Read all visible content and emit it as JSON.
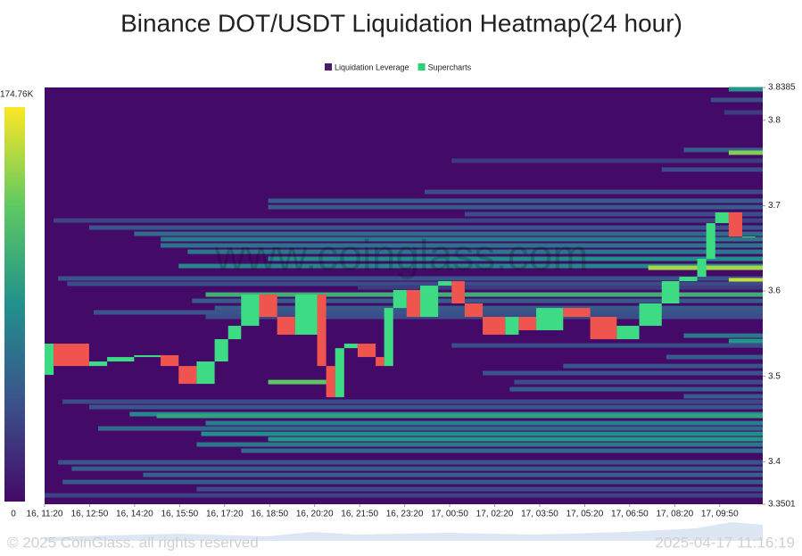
{
  "chart_data": {
    "type": "heatmap",
    "title": "Binance DOT/USDT Liquidation Heatmap(24 hour)",
    "legend": [
      {
        "name": "Liquidation Leverage",
        "color": "#4b1c6e"
      },
      {
        "name": "Supercharts",
        "color": "#2fd07a"
      }
    ],
    "watermark": "www.coinglass.com",
    "footer_left": "© 2025 CoinGlass. all rights reserved",
    "footer_right": "2025-04-17 11:16:19",
    "colorscale": [
      "#440a68",
      "#3b528b",
      "#21918c",
      "#5ec962",
      "#fde725"
    ],
    "colorbar_ticks": [
      0,
      {
        "value": 174760,
        "label": "174.76K"
      }
    ],
    "xlim": [
      680,
      2116
    ],
    "xticks": [
      {
        "value": 680,
        "label": "16, 11:20"
      },
      {
        "value": 770,
        "label": "16, 12:50"
      },
      {
        "value": 860,
        "label": "16, 14:20"
      },
      {
        "value": 950,
        "label": "16, 15:50"
      },
      {
        "value": 1040,
        "label": "16, 17:20"
      },
      {
        "value": 1130,
        "label": "16, 18:50"
      },
      {
        "value": 1220,
        "label": "16, 20:20"
      },
      {
        "value": 1310,
        "label": "16, 21:50"
      },
      {
        "value": 1400,
        "label": "16, 23:20"
      },
      {
        "value": 1490,
        "label": "17, 00:50"
      },
      {
        "value": 1580,
        "label": "17, 02:20"
      },
      {
        "value": 1670,
        "label": "17, 03:50"
      },
      {
        "value": 1760,
        "label": "17, 05:20"
      },
      {
        "value": 1850,
        "label": "17, 06:50"
      },
      {
        "value": 1940,
        "label": "17, 08:20"
      },
      {
        "value": 2030,
        "label": "17, 09:50"
      }
    ],
    "ylim": [
      3.3501,
      3.8385
    ],
    "yticks": [
      3.3501,
      3.4,
      3.5,
      3.6,
      3.7,
      3.8,
      3.8385
    ],
    "bands": [
      {
        "price": 3.8364,
        "start": 2048,
        "value": 90000
      },
      {
        "price": 3.8239,
        "start": 2012,
        "value": 40000
      },
      {
        "price": 3.8092,
        "start": 2039,
        "value": 30000
      },
      {
        "price": 3.7653,
        "start": 1958,
        "value": 50000
      },
      {
        "price": 3.7621,
        "start": 2048,
        "value": 140000
      },
      {
        "price": 3.7527,
        "start": 1494,
        "value": 30000
      },
      {
        "price": 3.7423,
        "start": 1914,
        "value": 40000
      },
      {
        "price": 3.7161,
        "start": 1440,
        "value": 40000
      },
      {
        "price": 3.7057,
        "start": 1127,
        "value": 50000
      },
      {
        "price": 3.6983,
        "start": 1127,
        "value": 50000
      },
      {
        "price": 3.69,
        "start": 1520,
        "value": 40000
      },
      {
        "price": 3.6826,
        "start": 698,
        "value": 35000
      },
      {
        "price": 3.6743,
        "start": 769,
        "value": 45000
      },
      {
        "price": 3.667,
        "start": 859,
        "value": 60000
      },
      {
        "price": 3.6607,
        "start": 912,
        "value": 70000
      },
      {
        "price": 3.6534,
        "start": 912,
        "value": 65000
      },
      {
        "price": 3.646,
        "start": 966,
        "value": 70000
      },
      {
        "price": 3.6377,
        "start": 1127,
        "value": 85000
      },
      {
        "price": 3.6293,
        "start": 948,
        "value": 80000
      },
      {
        "price": 3.6272,
        "start": 1887,
        "value": 150000
      },
      {
        "price": 3.6147,
        "start": 707,
        "value": 45000
      },
      {
        "price": 3.6126,
        "start": 2048,
        "value": 160000
      },
      {
        "price": 3.6084,
        "start": 725,
        "value": 40000
      },
      {
        "price": 3.6042,
        "start": 1306,
        "value": 30000
      },
      {
        "price": 3.5958,
        "start": 1002,
        "value": 110000
      },
      {
        "price": 3.5885,
        "start": 975,
        "value": 50000
      },
      {
        "price": 3.5801,
        "start": 1020,
        "value": 50000
      },
      {
        "price": 3.5749,
        "start": 778,
        "value": 45000
      },
      {
        "price": 3.5697,
        "start": 1002,
        "value": 40000
      },
      {
        "price": 3.5477,
        "start": 1958,
        "value": 70000
      },
      {
        "price": 3.5414,
        "start": 2048,
        "value": 90000
      },
      {
        "price": 3.5362,
        "start": 1494,
        "value": 40000
      },
      {
        "price": 3.5226,
        "start": 1923,
        "value": 50000
      },
      {
        "price": 3.5121,
        "start": 1717,
        "value": 45000
      },
      {
        "price": 3.5038,
        "start": 1556,
        "value": 45000
      },
      {
        "price": 3.4933,
        "start": 1127,
        "end": 1252,
        "value": 130000
      },
      {
        "price": 3.4933,
        "start": 1619,
        "value": 40000
      },
      {
        "price": 3.4849,
        "start": 1610,
        "value": 50000
      },
      {
        "price": 3.4766,
        "start": 1958,
        "value": 50000
      },
      {
        "price": 3.4703,
        "start": 716,
        "value": 40000
      },
      {
        "price": 3.464,
        "start": 769,
        "value": 45000
      },
      {
        "price": 3.4557,
        "start": 850,
        "value": 80000
      },
      {
        "price": 3.4536,
        "start": 904,
        "value": 100000
      },
      {
        "price": 3.4452,
        "start": 1002,
        "value": 75000
      },
      {
        "price": 3.4389,
        "start": 787,
        "value": 60000
      },
      {
        "price": 3.4326,
        "start": 993,
        "value": 85000
      },
      {
        "price": 3.4264,
        "start": 1127,
        "value": 90000
      },
      {
        "price": 3.4201,
        "start": 984,
        "value": 70000
      },
      {
        "price": 3.4128,
        "start": 1073,
        "value": 60000
      },
      {
        "price": 3.3992,
        "start": 707,
        "value": 45000
      },
      {
        "price": 3.3918,
        "start": 734,
        "value": 50000
      },
      {
        "price": 3.3845,
        "start": 877,
        "value": 55000
      },
      {
        "price": 3.3762,
        "start": 716,
        "value": 50000
      },
      {
        "price": 3.3678,
        "start": 984,
        "value": 40000
      },
      {
        "price": 3.3605,
        "start": 680,
        "value": 35000
      }
    ],
    "price": {
      "up_color": "#3ddc84",
      "down_color": "#f0544f",
      "x": [
        680,
        698,
        769,
        805,
        859,
        912,
        948,
        984,
        1020,
        1047,
        1073,
        1109,
        1145,
        1181,
        1225,
        1243,
        1261,
        1279,
        1306,
        1342,
        1359,
        1377,
        1404,
        1431,
        1467,
        1494,
        1520,
        1556,
        1601,
        1628,
        1663,
        1717,
        1771,
        1824,
        1869,
        1914,
        1949,
        1985,
        2003,
        2021,
        2048,
        2075,
        2101
      ],
      "values": [
        3.5017,
        3.5383,
        3.5121,
        3.5174,
        3.5226,
        3.5247,
        3.5121,
        3.4912,
        3.5174,
        3.5435,
        3.5592,
        3.5958,
        3.5697,
        3.5488,
        3.5958,
        3.5121,
        3.4755,
        3.533,
        3.5383,
        3.5226,
        3.5121,
        3.5801,
        3.6011,
        3.5697,
        3.6063,
        3.6115,
        3.5854,
        3.5697,
        3.5488,
        3.5697,
        3.554,
        3.5801,
        3.5697,
        3.5435,
        3.5592,
        3.5854,
        3.6115,
        3.6167,
        3.6377,
        3.6795,
        3.6921,
        3.6638,
        3.6638
      ]
    }
  }
}
